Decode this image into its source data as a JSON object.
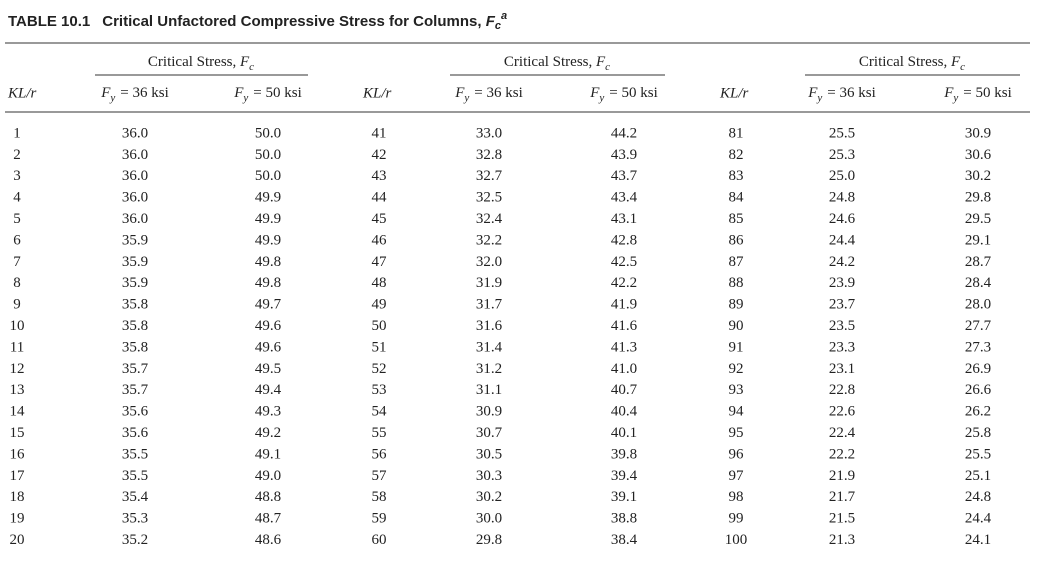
{
  "title": {
    "number": "TABLE 10.1",
    "text": "Critical Unfactored Compressive Stress for Columns, ",
    "symbol": "F",
    "sub": "c",
    "sup": "a"
  },
  "table": {
    "groups": [
      {
        "heading": {
          "text": "Critical Stress, ",
          "symbol": "F",
          "sub": "c"
        },
        "columns": {
          "kl": "KL/r",
          "fy36": {
            "symbol": "F",
            "sub": "y",
            "text": "= 36 ksi"
          },
          "fy50": {
            "symbol": "F",
            "sub": "y",
            "text": "= 50 ksi"
          }
        }
      },
      {
        "heading": {
          "text": "Critical Stress, ",
          "symbol": "F",
          "sub": "c"
        },
        "columns": {
          "kl": "KL/r",
          "fy36": {
            "symbol": "F",
            "sub": "y",
            "text": "= 36 ksi"
          },
          "fy50": {
            "symbol": "F",
            "sub": "y",
            "text": "= 50 ksi"
          }
        }
      },
      {
        "heading": {
          "text": "Critical Stress, ",
          "symbol": "F",
          "sub": "c"
        },
        "columns": {
          "kl": "KL/r",
          "fy36": {
            "symbol": "F",
            "sub": "y",
            "text": "= 36 ksi"
          },
          "fy50": {
            "symbol": "F",
            "sub": "y",
            "text": "= 50 ksi"
          }
        }
      }
    ],
    "rows": [
      [
        "1",
        "36.0",
        "50.0",
        "41",
        "33.0",
        "44.2",
        "81",
        "25.5",
        "30.9"
      ],
      [
        "2",
        "36.0",
        "50.0",
        "42",
        "32.8",
        "43.9",
        "82",
        "25.3",
        "30.6"
      ],
      [
        "3",
        "36.0",
        "50.0",
        "43",
        "32.7",
        "43.7",
        "83",
        "25.0",
        "30.2"
      ],
      [
        "4",
        "36.0",
        "49.9",
        "44",
        "32.5",
        "43.4",
        "84",
        "24.8",
        "29.8"
      ],
      [
        "5",
        "36.0",
        "49.9",
        "45",
        "32.4",
        "43.1",
        "85",
        "24.6",
        "29.5"
      ],
      [
        "6",
        "35.9",
        "49.9",
        "46",
        "32.2",
        "42.8",
        "86",
        "24.4",
        "29.1"
      ],
      [
        "7",
        "35.9",
        "49.8",
        "47",
        "32.0",
        "42.5",
        "87",
        "24.2",
        "28.7"
      ],
      [
        "8",
        "35.9",
        "49.8",
        "48",
        "31.9",
        "42.2",
        "88",
        "23.9",
        "28.4"
      ],
      [
        "9",
        "35.8",
        "49.7",
        "49",
        "31.7",
        "41.9",
        "89",
        "23.7",
        "28.0"
      ],
      [
        "10",
        "35.8",
        "49.6",
        "50",
        "31.6",
        "41.6",
        "90",
        "23.5",
        "27.7"
      ],
      [
        "11",
        "35.8",
        "49.6",
        "51",
        "31.4",
        "41.3",
        "91",
        "23.3",
        "27.3"
      ],
      [
        "12",
        "35.7",
        "49.5",
        "52",
        "31.2",
        "41.0",
        "92",
        "23.1",
        "26.9"
      ],
      [
        "13",
        "35.7",
        "49.4",
        "53",
        "31.1",
        "40.7",
        "93",
        "22.8",
        "26.6"
      ],
      [
        "14",
        "35.6",
        "49.3",
        "54",
        "30.9",
        "40.4",
        "94",
        "22.6",
        "26.2"
      ],
      [
        "15",
        "35.6",
        "49.2",
        "55",
        "30.7",
        "40.1",
        "95",
        "22.4",
        "25.8"
      ],
      [
        "16",
        "35.5",
        "49.1",
        "56",
        "30.5",
        "39.8",
        "96",
        "22.2",
        "25.5"
      ],
      [
        "17",
        "35.5",
        "49.0",
        "57",
        "30.3",
        "39.4",
        "97",
        "21.9",
        "25.1"
      ],
      [
        "18",
        "35.4",
        "48.8",
        "58",
        "30.2",
        "39.1",
        "98",
        "21.7",
        "24.8"
      ],
      [
        "19",
        "35.3",
        "48.7",
        "59",
        "30.0",
        "38.8",
        "99",
        "21.5",
        "24.4"
      ],
      [
        "20",
        "35.2",
        "48.6",
        "60",
        "29.8",
        "38.4",
        "100",
        "21.3",
        "24.1"
      ]
    ]
  }
}
